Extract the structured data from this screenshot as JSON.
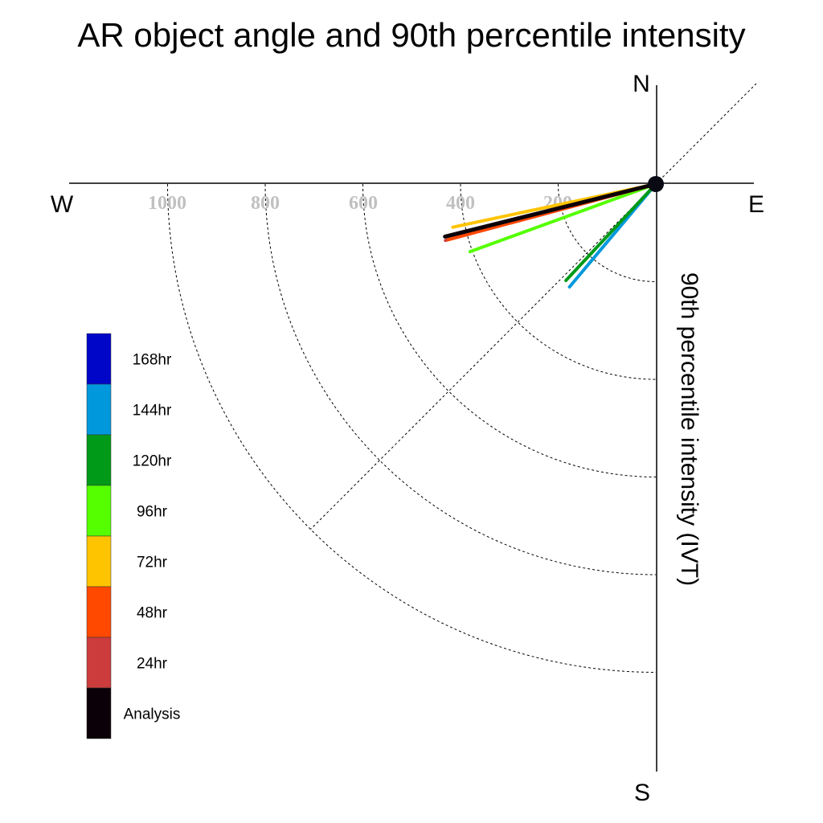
{
  "chart_data": {
    "type": "polar-quadrant",
    "title": "AR object angle and 90th percentile intensity",
    "ylabel": "90th percentile intensity (IVT)",
    "compass": {
      "north": "N",
      "south": "S",
      "east": "E",
      "west": "W"
    },
    "radial_ticks": [
      "1000",
      "800",
      "600",
      "400",
      "200"
    ],
    "radial_tick_values": [
      1000,
      800,
      600,
      400,
      200
    ],
    "rlim": [
      0,
      1200
    ],
    "grid": true,
    "legend_position": "left",
    "series": [
      {
        "name": "Analysis",
        "color": "#0c0008",
        "intensity": 445,
        "angle_deg": 14
      },
      {
        "name": "24hr",
        "color": "#cc3c3c",
        "intensity": 446,
        "angle_deg": 15
      },
      {
        "name": "48hr",
        "color": "#ff4800",
        "intensity": 440,
        "angle_deg": 15
      },
      {
        "name": "72hr",
        "color": "#ffc400",
        "intensity": 425,
        "angle_deg": 12
      },
      {
        "name": "96hr",
        "color": "#55ff00",
        "intensity": 405,
        "angle_deg": 20
      },
      {
        "name": "120hr",
        "color": "#009a18",
        "intensity": 270,
        "angle_deg": 47
      },
      {
        "name": "144hr",
        "color": "#0098dc",
        "intensity": 275,
        "angle_deg": 50
      },
      {
        "name": "168hr",
        "color": "#0006c8",
        "intensity": null,
        "angle_deg": null
      }
    ]
  }
}
